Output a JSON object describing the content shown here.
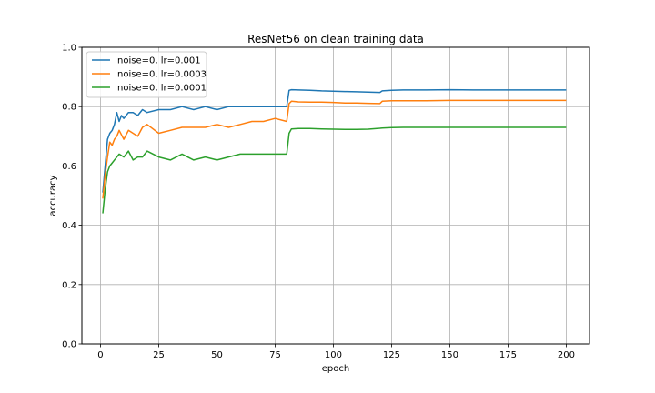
{
  "chart_data": {
    "type": "line",
    "title": "ResNet56 on clean training data",
    "xlabel": "epoch",
    "ylabel": "accuracy",
    "xlim": [
      -8,
      210
    ],
    "ylim": [
      0.0,
      1.0
    ],
    "xticks": [
      0,
      25,
      50,
      75,
      100,
      125,
      150,
      175,
      200
    ],
    "yticks": [
      0.0,
      0.2,
      0.4,
      0.6,
      0.8,
      1.0
    ],
    "xtick_labels": [
      "0",
      "25",
      "50",
      "75",
      "100",
      "125",
      "150",
      "175",
      "200"
    ],
    "ytick_labels": [
      "0.0",
      "0.2",
      "0.4",
      "0.6",
      "0.8",
      "1.0"
    ],
    "grid": true,
    "legend_position": "top-left",
    "colors": {
      "lr_0.001": "#1f77b4",
      "lr_0.0003": "#ff7f0e",
      "lr_0.0001": "#2ca02c"
    },
    "series": [
      {
        "name": "noise=0, lr=0.001",
        "color": "#1f77b4",
        "x": [
          1,
          2,
          3,
          4,
          5,
          6,
          7,
          8,
          9,
          10,
          12,
          14,
          16,
          18,
          20,
          25,
          30,
          35,
          40,
          45,
          50,
          55,
          60,
          65,
          70,
          75,
          80,
          81,
          82,
          85,
          90,
          95,
          100,
          105,
          110,
          115,
          120,
          121,
          125,
          130,
          140,
          150,
          160,
          170,
          180,
          190,
          200
        ],
        "values": [
          0.51,
          0.6,
          0.69,
          0.71,
          0.72,
          0.74,
          0.78,
          0.75,
          0.77,
          0.76,
          0.78,
          0.78,
          0.77,
          0.79,
          0.78,
          0.79,
          0.79,
          0.8,
          0.79,
          0.8,
          0.79,
          0.8,
          0.8,
          0.8,
          0.8,
          0.8,
          0.8,
          0.855,
          0.857,
          0.856,
          0.855,
          0.853,
          0.852,
          0.851,
          0.85,
          0.849,
          0.848,
          0.853,
          0.855,
          0.856,
          0.856,
          0.857,
          0.856,
          0.856,
          0.856,
          0.856,
          0.856
        ]
      },
      {
        "name": "noise=0, lr=0.0003",
        "color": "#ff7f0e",
        "x": [
          1,
          2,
          3,
          4,
          5,
          6,
          7,
          8,
          10,
          12,
          14,
          16,
          18,
          20,
          25,
          30,
          35,
          40,
          45,
          50,
          55,
          60,
          65,
          70,
          75,
          80,
          81,
          82,
          85,
          90,
          95,
          100,
          105,
          110,
          115,
          120,
          121,
          125,
          130,
          140,
          150,
          160,
          170,
          180,
          190,
          200
        ],
        "values": [
          0.49,
          0.57,
          0.63,
          0.68,
          0.67,
          0.69,
          0.7,
          0.72,
          0.69,
          0.72,
          0.71,
          0.7,
          0.73,
          0.74,
          0.71,
          0.72,
          0.73,
          0.73,
          0.73,
          0.74,
          0.73,
          0.74,
          0.75,
          0.75,
          0.76,
          0.75,
          0.81,
          0.818,
          0.816,
          0.815,
          0.815,
          0.814,
          0.812,
          0.812,
          0.811,
          0.81,
          0.818,
          0.82,
          0.82,
          0.82,
          0.821,
          0.821,
          0.821,
          0.821,
          0.821,
          0.821
        ]
      },
      {
        "name": "noise=0, lr=0.0001",
        "color": "#2ca02c",
        "x": [
          1,
          2,
          3,
          4,
          5,
          6,
          8,
          10,
          12,
          14,
          16,
          18,
          20,
          25,
          30,
          35,
          40,
          45,
          50,
          55,
          60,
          65,
          70,
          75,
          80,
          81,
          82,
          85,
          90,
          95,
          100,
          105,
          110,
          115,
          120,
          121,
          125,
          130,
          140,
          150,
          160,
          170,
          180,
          190,
          200
        ],
        "values": [
          0.44,
          0.52,
          0.58,
          0.6,
          0.61,
          0.62,
          0.64,
          0.63,
          0.65,
          0.62,
          0.63,
          0.63,
          0.65,
          0.63,
          0.62,
          0.64,
          0.62,
          0.63,
          0.62,
          0.63,
          0.64,
          0.64,
          0.64,
          0.64,
          0.64,
          0.71,
          0.725,
          0.726,
          0.726,
          0.725,
          0.724,
          0.723,
          0.723,
          0.724,
          0.727,
          0.728,
          0.729,
          0.73,
          0.73,
          0.73,
          0.73,
          0.73,
          0.73,
          0.73,
          0.73
        ]
      }
    ]
  }
}
